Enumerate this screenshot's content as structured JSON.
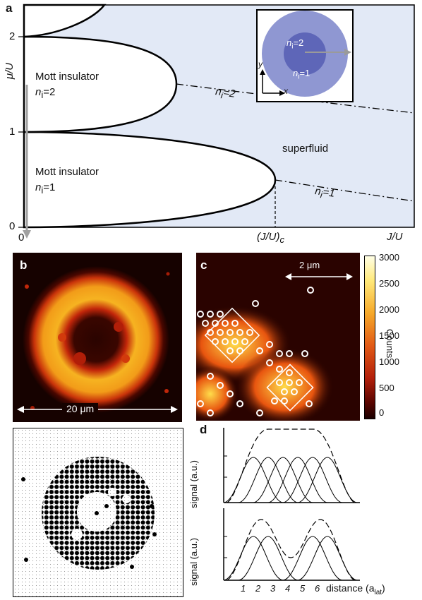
{
  "panel_a": {
    "letter": "a",
    "y_axis_label": "μ/U",
    "x_axis_label": "J/U",
    "y_ticks": [
      "0",
      "1",
      "2"
    ],
    "x_tick_origin": "0",
    "critical_label": "(J/U)",
    "critical_sub": "c",
    "mott1_title": "Mott insulator",
    "mott1_occ": "n",
    "mott1_occ_sub": "i",
    "mott1_occ_val": "=1",
    "mott2_title": "Mott insulator",
    "mott2_occ": "n",
    "mott2_occ_sub": "i",
    "mott2_occ_val": "=2",
    "superfluid_label": "superfluid",
    "contour2_label": "n",
    "contour2_sub": "i",
    "contour2_val": "=2",
    "contour1_label": "n",
    "contour1_sub": "i",
    "contour1_val": "=1",
    "inset": {
      "outer_label": "n",
      "outer_sub": "i",
      "outer_val": "=1",
      "inner_label": "n",
      "inner_sub": "i",
      "inner_val": "=2",
      "axis_x": "x",
      "axis_y": "y"
    },
    "colors": {
      "superfluid_fill": "#e2e9f6",
      "inset_outer": "#8f97d2",
      "inset_inner": "#5e66b8"
    }
  },
  "panel_b": {
    "letter": "b",
    "scale_label": "20 μm"
  },
  "panel_c": {
    "letter": "c",
    "scale_label": "2 μm",
    "colorbar_label": "Counts",
    "colorbar_ticks": [
      "3000",
      "2500",
      "2000",
      "1500",
      "1000",
      "500",
      "0"
    ]
  },
  "panel_d": {
    "letter": "d",
    "ylabel_top": "signal (a.u.)",
    "ylabel_bottom": "signal (a.u.)",
    "x_ticks": [
      "1",
      "2",
      "3",
      "4",
      "5",
      "6"
    ],
    "x_label": "distance (a",
    "x_label_sub": "lat",
    "x_label_end": ")"
  }
}
